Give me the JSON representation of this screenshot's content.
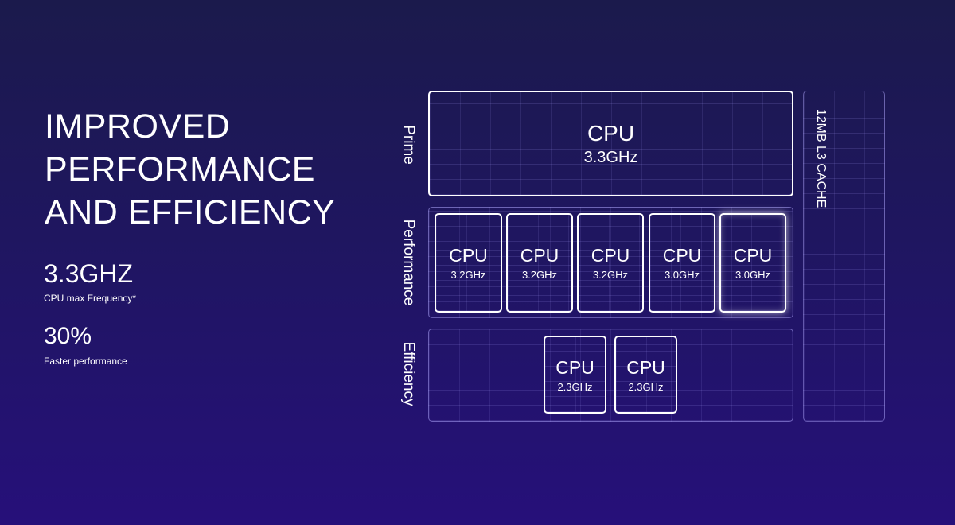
{
  "headline": {
    "lines": [
      "IMPROVED",
      "PERFORMANCE",
      "AND EFFICIENCY"
    ]
  },
  "stats": [
    {
      "value": "3.3GHZ",
      "label": "CPU max Frequency*"
    },
    {
      "value": "30%",
      "label": "Faster performance"
    }
  ],
  "diagram": {
    "tiers": {
      "prime": "Prime",
      "performance": "Performance",
      "efficiency": "Efficiency"
    },
    "cache": "12MB L3 CACHE",
    "prime_core": {
      "name": "CPU",
      "freq": "3.3GHz"
    },
    "performance_cores": [
      {
        "name": "CPU",
        "freq": "3.2GHz"
      },
      {
        "name": "CPU",
        "freq": "3.2GHz"
      },
      {
        "name": "CPU",
        "freq": "3.2GHz"
      },
      {
        "name": "CPU",
        "freq": "3.0GHz"
      },
      {
        "name": "CPU",
        "freq": "3.0GHz",
        "highlighted": true
      }
    ],
    "efficiency_cores": [
      {
        "name": "CPU",
        "freq": "2.3GHz"
      },
      {
        "name": "CPU",
        "freq": "2.3GHz"
      }
    ]
  }
}
